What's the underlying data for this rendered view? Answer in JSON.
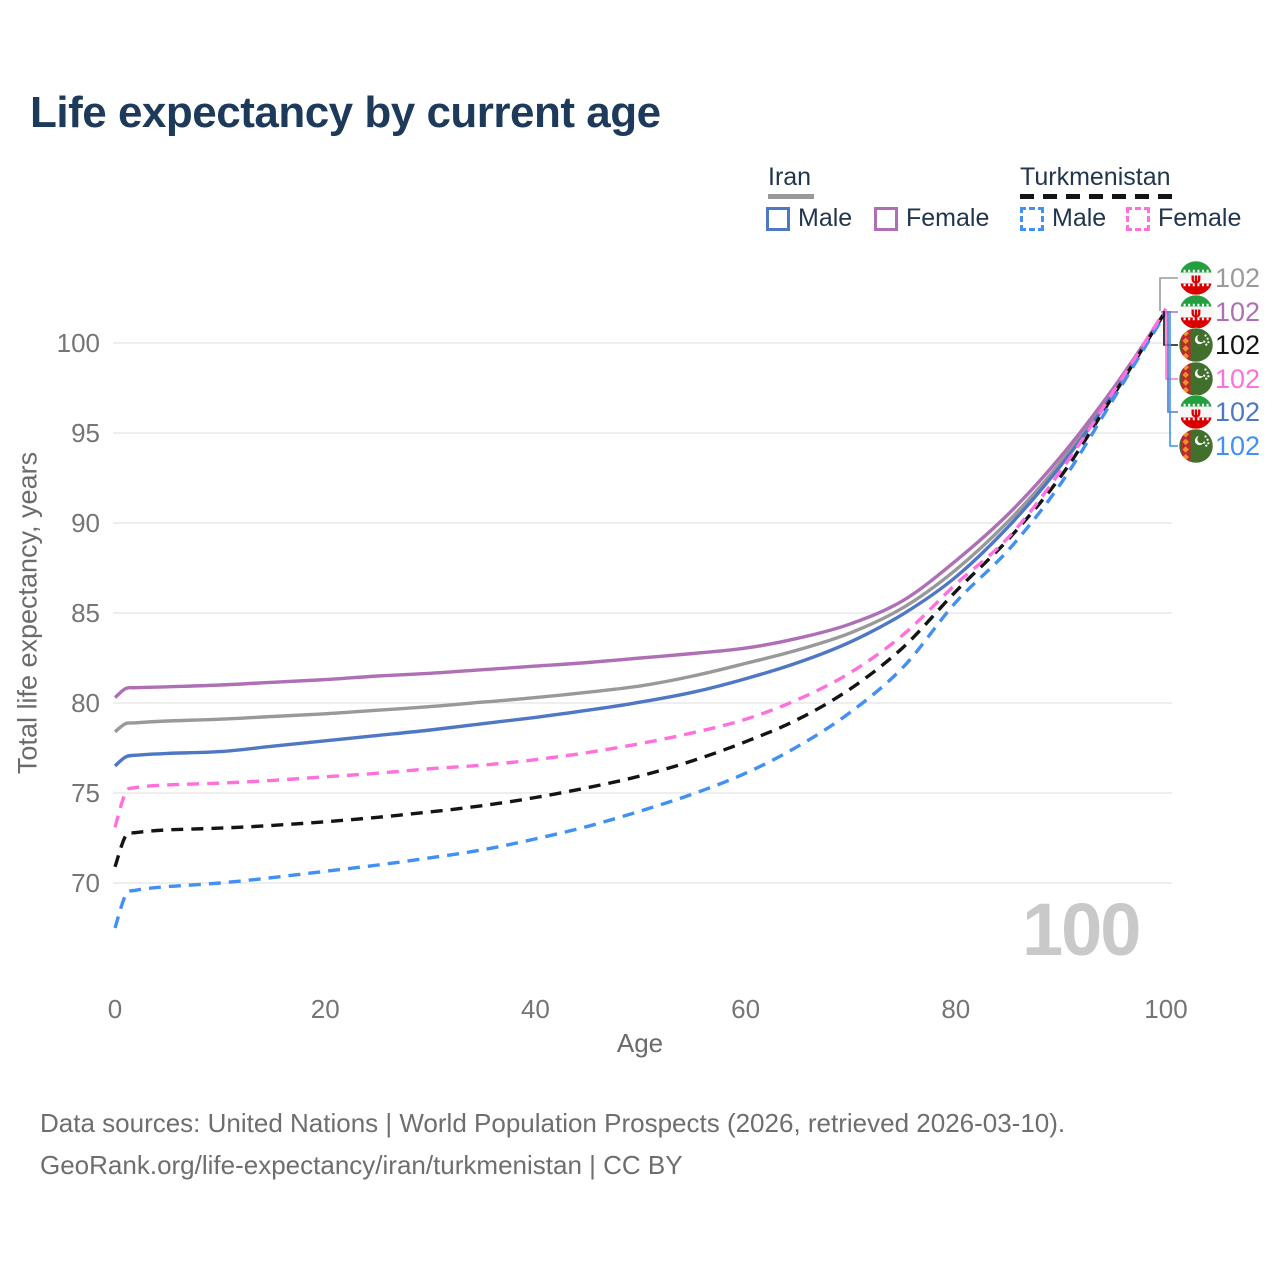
{
  "title": "Life expectancy by current age",
  "legend": {
    "groups": [
      {
        "label": "Iran",
        "line_style": "solid",
        "line_color": "#999999",
        "items": [
          {
            "label": "Male",
            "color": "#4f78c4",
            "dashed": false
          },
          {
            "label": "Female",
            "color": "#af6fb5",
            "dashed": false
          }
        ]
      },
      {
        "label": "Turkmenistan",
        "line_style": "dashed",
        "line_color": "#141414",
        "items": [
          {
            "label": "Male",
            "color": "#4190f2",
            "dashed": true
          },
          {
            "label": "Female",
            "color": "#ff70dd",
            "dashed": true
          }
        ]
      }
    ]
  },
  "axes": {
    "y_title": "Total life expectancy, years",
    "x_title": "Age",
    "y_ticks": [
      "100",
      "95",
      "90",
      "85",
      "80",
      "75",
      "70"
    ],
    "y_tick_values": [
      100,
      95,
      90,
      85,
      80,
      75,
      70
    ],
    "x_ticks": [
      "0",
      "20",
      "40",
      "60",
      "80",
      "100"
    ],
    "x_tick_values": [
      0,
      20,
      40,
      60,
      80,
      100
    ],
    "y_range": [
      70,
      100
    ],
    "x_range": [
      0,
      100
    ],
    "grid": true
  },
  "watermark": "100",
  "chart_data": {
    "type": "line",
    "title": "Life expectancy by current age",
    "xlabel": "Age",
    "ylabel": "Total life expectancy, years",
    "xlim": [
      0,
      100
    ],
    "ylim_shown": [
      70,
      100
    ],
    "legend_position": "top-right",
    "x": [
      0,
      1,
      2,
      5,
      10,
      15,
      20,
      25,
      30,
      35,
      40,
      45,
      50,
      55,
      60,
      65,
      70,
      75,
      80,
      85,
      90,
      95,
      100
    ],
    "series": [
      {
        "name": "Iran Total",
        "country": "Iran",
        "sex": "All",
        "color": "#999999",
        "dashed": false,
        "values": [
          78.4,
          78.85,
          78.9,
          79.0,
          79.1,
          79.25,
          79.4,
          79.6,
          79.8,
          80.05,
          80.3,
          80.6,
          80.95,
          81.5,
          82.2,
          82.95,
          83.9,
          85.3,
          87.4,
          90.1,
          93.4,
          97.4,
          101.8
        ]
      },
      {
        "name": "Iran Male",
        "country": "Iran",
        "sex": "Male",
        "color": "#4f78c4",
        "dashed": false,
        "values": [
          76.5,
          77.0,
          77.1,
          77.2,
          77.3,
          77.6,
          77.9,
          78.2,
          78.5,
          78.85,
          79.2,
          79.6,
          80.05,
          80.6,
          81.35,
          82.25,
          83.4,
          84.95,
          87.0,
          89.8,
          93.2,
          97.2,
          101.8
        ]
      },
      {
        "name": "Iran Female",
        "country": "Iran",
        "sex": "Female",
        "color": "#af6fb5",
        "dashed": false,
        "values": [
          80.3,
          80.8,
          80.85,
          80.9,
          81.0,
          81.15,
          81.3,
          81.5,
          81.65,
          81.85,
          82.05,
          82.25,
          82.5,
          82.75,
          83.05,
          83.6,
          84.4,
          85.7,
          87.9,
          90.5,
          93.7,
          97.5,
          101.8
        ]
      },
      {
        "name": "Turkmenistan Total",
        "country": "Turkmenistan",
        "sex": "All",
        "color": "#141414",
        "dashed": true,
        "values": [
          70.9,
          72.6,
          72.8,
          72.95,
          73.05,
          73.2,
          73.4,
          73.65,
          73.95,
          74.3,
          74.75,
          75.3,
          75.95,
          76.8,
          77.85,
          79.1,
          80.8,
          83.1,
          86.2,
          89.1,
          92.6,
          97.1,
          101.8
        ]
      },
      {
        "name": "Turkmenistan Male",
        "country": "Turkmenistan",
        "sex": "Male",
        "color": "#4190f2",
        "dashed": true,
        "values": [
          67.5,
          69.3,
          69.6,
          69.8,
          70.0,
          70.3,
          70.65,
          71.0,
          71.4,
          71.85,
          72.45,
          73.15,
          74.0,
          74.95,
          76.1,
          77.6,
          79.5,
          82.0,
          85.6,
          88.5,
          92.2,
          96.9,
          101.7
        ]
      },
      {
        "name": "Turkmenistan Female",
        "country": "Turkmenistan",
        "sex": "Female",
        "color": "#ff70dd",
        "dashed": true,
        "values": [
          73.1,
          75.0,
          75.3,
          75.45,
          75.55,
          75.7,
          75.9,
          76.1,
          76.35,
          76.55,
          76.85,
          77.25,
          77.75,
          78.35,
          79.1,
          80.2,
          81.7,
          83.8,
          86.6,
          89.2,
          92.9,
          97.3,
          101.9
        ]
      }
    ],
    "end_labels": [
      {
        "value": "102",
        "series": "Iran Total",
        "flag": "iran",
        "color": "#9a9a9a"
      },
      {
        "value": "102",
        "series": "Iran Female",
        "flag": "iran",
        "color": "#af6fb5"
      },
      {
        "value": "102",
        "series": "Turkmenistan Total",
        "flag": "turkmenistan",
        "color": "#141414"
      },
      {
        "value": "102",
        "series": "Turkmenistan Female",
        "flag": "turkmenistan",
        "color": "#ff70dd"
      },
      {
        "value": "102",
        "series": "Iran Male",
        "flag": "iran",
        "color": "#4f78c4"
      },
      {
        "value": "102",
        "series": "Turkmenistan Male",
        "flag": "turkmenistan",
        "color": "#4190f2"
      }
    ]
  },
  "footer": {
    "line1": "Data sources: United Nations | World Population Prospects (2026, retrieved 2026-03-10).",
    "line2": "GeoRank.org/life-expectancy/iran/turkmenistan | CC BY"
  }
}
